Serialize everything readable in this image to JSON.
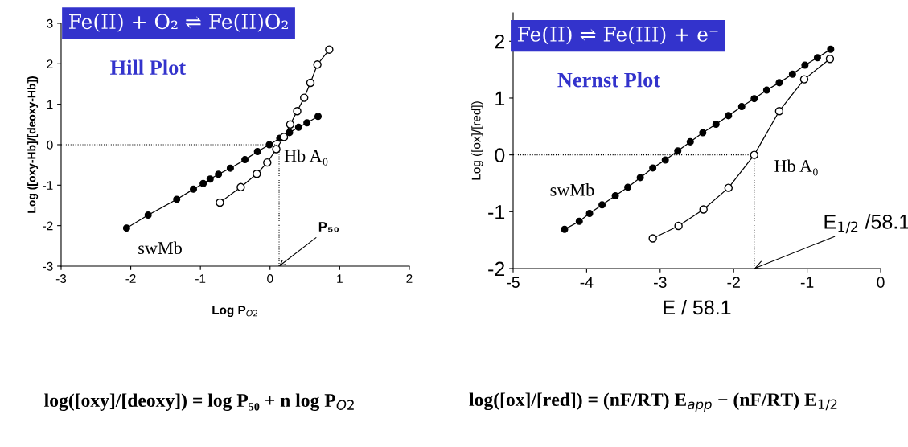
{
  "chart_data": [
    {
      "type": "line",
      "title": "Fe(II) + O₂ ⇌ Fe(II)O₂",
      "subtitle": "Hill Plot",
      "xlabel": "Log P$_{O2}$",
      "ylabel": "Log ([oxy-Hb]/[deoxy-Hb])",
      "xlim": [
        -3,
        2
      ],
      "xticks": [
        -3,
        -2,
        -1,
        0,
        1,
        2
      ],
      "ylim": [
        -3,
        3
      ],
      "yticks": [
        -3,
        -2,
        -1,
        0,
        1,
        2,
        3
      ],
      "grid": false,
      "legend": false,
      "marker": "circle",
      "line_style": "solid",
      "series": [
        {
          "name": "swMb",
          "color": "#000000",
          "x": [
            -2.06,
            -1.75,
            -1.34,
            -1.1,
            -0.96,
            -0.86,
            -0.74,
            -0.57,
            -0.36,
            -0.18,
            -0.01,
            0.14,
            0.28,
            0.41,
            0.53,
            0.69
          ],
          "values": [
            -2.06,
            -1.74,
            -1.35,
            -1.1,
            -0.96,
            -0.85,
            -0.73,
            -0.58,
            -0.37,
            -0.17,
            0.0,
            0.16,
            0.3,
            0.43,
            0.54,
            0.7
          ]
        },
        {
          "name": "Hb A₀",
          "color": "#000000",
          "x": [
            -0.72,
            -0.42,
            -0.19,
            -0.04,
            0.09,
            0.2,
            0.29,
            0.39,
            0.49,
            0.58,
            0.68,
            0.85
          ],
          "values": [
            -1.43,
            -1.05,
            -0.72,
            -0.44,
            -0.11,
            0.19,
            0.5,
            0.83,
            1.16,
            1.53,
            1.98,
            2.35
          ]
        }
      ],
      "ref_lines": [
        {
          "axis": "y",
          "value": 0,
          "line_style": "dotted"
        },
        {
          "axis": "x",
          "value": 0.13,
          "line_style": "dotted"
        }
      ],
      "annotations": [
        {
          "text": "P₅₀",
          "x": 0.13,
          "y": -3
        },
        "log([oxy]/[deoxy]) = log P₅₀ + n log P$_{O2}$"
      ]
    },
    {
      "type": "line",
      "title": "Fe(II) ⇌ Fe(III) + e⁻",
      "subtitle": "Nernst Plot",
      "xlabel": "E / 58.1",
      "ylabel": "Log ([ox]/[red])",
      "xlim": [
        -5,
        0
      ],
      "xticks": [
        -5,
        -4,
        -3,
        -2,
        -1,
        0
      ],
      "ylim": [
        -2,
        2.5
      ],
      "yticks": [
        -2,
        -1,
        0,
        1,
        2
      ],
      "grid": false,
      "legend": false,
      "marker": "circle",
      "line_style": "solid",
      "series": [
        {
          "name": "swMb",
          "color": "#000000",
          "x": [
            -4.3,
            -4.1,
            -3.96,
            -3.79,
            -3.61,
            -3.44,
            -3.27,
            -3.1,
            -2.93,
            -2.76,
            -2.59,
            -2.42,
            -2.24,
            -2.07,
            -1.89,
            -1.72,
            -1.55,
            -1.38,
            -1.2,
            -1.03,
            -0.86,
            -0.68
          ],
          "values": [
            -1.31,
            -1.17,
            -1.03,
            -0.88,
            -0.72,
            -0.57,
            -0.4,
            -0.23,
            -0.09,
            0.07,
            0.23,
            0.39,
            0.54,
            0.69,
            0.85,
            0.99,
            1.14,
            1.27,
            1.42,
            1.58,
            1.71,
            1.86
          ]
        },
        {
          "name": "Hb A₀",
          "color": "#000000",
          "x": [
            -3.1,
            -2.75,
            -2.41,
            -2.07,
            -1.72,
            -1.38,
            -1.04,
            -0.69
          ],
          "values": [
            -1.47,
            -1.25,
            -0.96,
            -0.58,
            0.0,
            0.77,
            1.33,
            1.69
          ]
        }
      ],
      "ref_lines": [
        {
          "axis": "y",
          "value": 0,
          "line_style": "dotted"
        },
        {
          "axis": "x",
          "value": -1.72,
          "line_style": "dotted"
        }
      ],
      "annotations": [
        {
          "text": "E$_{1/2}$ /58.1",
          "x": -1.72,
          "y": -2
        },
        "log([ox]/[red]) = (nF/RT) E$_{app}$ − (nF/RT) E$_{1/2}$"
      ]
    }
  ]
}
